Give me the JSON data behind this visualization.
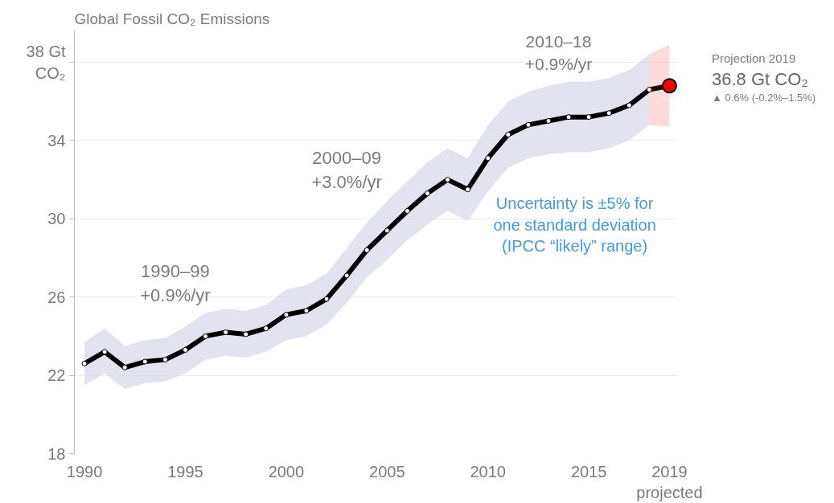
{
  "chart_data": {
    "type": "line",
    "title": "Global Fossil CO₂ Emissions",
    "x": [
      1990,
      1991,
      1992,
      1993,
      1994,
      1995,
      1996,
      1997,
      1998,
      1999,
      2000,
      2001,
      2002,
      2003,
      2004,
      2005,
      2006,
      2007,
      2008,
      2009,
      2010,
      2011,
      2012,
      2013,
      2014,
      2015,
      2016,
      2017,
      2018,
      2019
    ],
    "series": [
      {
        "color": "#000000",
        "values": [
          22.6,
          23.2,
          22.4,
          22.7,
          22.8,
          23.3,
          24.0,
          24.2,
          24.1,
          24.4,
          25.1,
          25.3,
          25.9,
          27.1,
          28.4,
          29.4,
          30.4,
          31.3,
          32.0,
          31.5,
          33.1,
          34.3,
          34.8,
          35.0,
          35.2,
          35.2,
          35.4,
          35.8,
          36.6,
          36.8
        ],
        "lower": [
          21.5,
          22.1,
          21.3,
          21.6,
          21.7,
          22.1,
          22.8,
          23.0,
          22.9,
          23.2,
          23.8,
          24.0,
          24.6,
          25.7,
          27.0,
          27.9,
          28.9,
          29.7,
          30.4,
          29.9,
          31.4,
          32.6,
          33.1,
          33.3,
          33.4,
          33.4,
          33.6,
          34.0,
          34.8,
          null
        ],
        "upper": [
          23.7,
          24.4,
          23.5,
          23.8,
          23.9,
          24.5,
          25.2,
          25.4,
          25.3,
          25.6,
          26.4,
          26.6,
          27.2,
          28.5,
          29.8,
          30.9,
          31.9,
          32.9,
          33.6,
          33.1,
          34.8,
          36.0,
          36.5,
          36.8,
          37.0,
          37.0,
          37.2,
          37.6,
          38.4,
          null
        ]
      },
      {
        "type": "scatter",
        "color": "#ff0000",
        "x": [
          2018,
          2019
        ],
        "values": [
          null,
          36.8
        ],
        "lower": [
          34.8,
          34.7
        ],
        "upper": [
          38.4,
          38.9
        ]
      }
    ],
    "xlim": [
      1989.5,
      2019.4
    ],
    "ylim": [
      18,
      39.6
    ],
    "xticks": [
      1990,
      1995,
      2000,
      2005,
      2010,
      2015,
      {
        "value": 2019,
        "label": "2019\nprojected"
      }
    ],
    "yticks": [
      18,
      22,
      26,
      30,
      34,
      {
        "value": 38,
        "label": "38 Gt\nCO₂"
      }
    ],
    "grid": "y",
    "marker": "circle",
    "line_style": "solid",
    "annotations": [
      "1990–99\n+0.9%/yr",
      "2000–09\n+3.0%/yr",
      "2010–18\n+0.9%/yr",
      "Projection 2019",
      "36.8 Gt CO₂",
      "▲ 0.6% (-0.2%–1.5%)",
      "Uncertainty is ±5% for\none standard deviation\n(IPCC “likely” range)"
    ]
  }
}
